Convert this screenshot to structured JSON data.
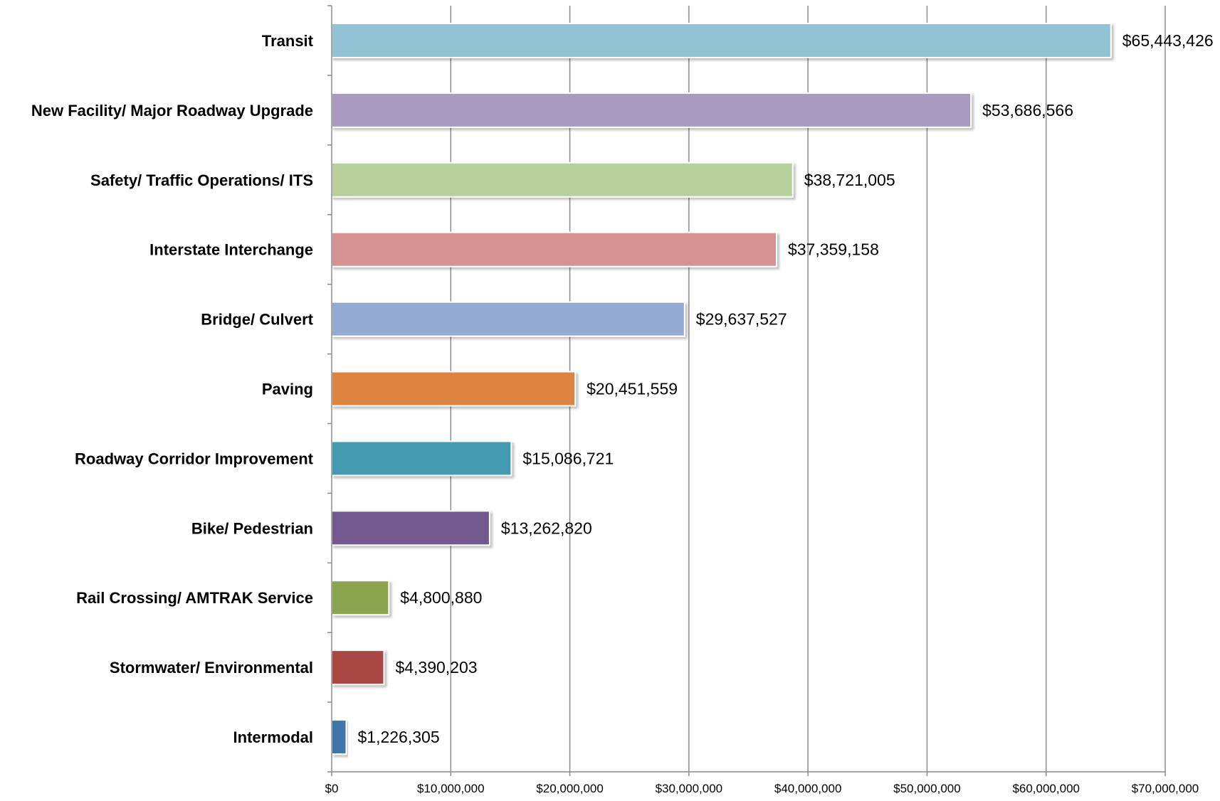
{
  "chart_data": {
    "type": "bar",
    "orientation": "horizontal",
    "title": "",
    "xlabel": "",
    "ylabel": "",
    "categories": [
      "Transit",
      "New Facility/ Major Roadway Upgrade",
      "Safety/ Traffic Operations/ ITS",
      "Interstate Interchange",
      "Bridge/ Culvert",
      "Paving",
      "Roadway Corridor Improvement",
      "Bike/ Pedestrian",
      "Rail Crossing/ AMTRAK Service",
      "Stormwater/ Environmental",
      "Intermodal"
    ],
    "values": [
      65443426,
      53686566,
      38721005,
      37359158,
      29637527,
      20451559,
      15086721,
      13262820,
      4800880,
      4390203,
      1226305
    ],
    "value_labels": [
      "$65,443,426",
      "$53,686,566",
      "$38,721,005",
      "$37,359,158",
      "$29,637,527",
      "$20,451,559",
      "$15,086,721",
      "$13,262,820",
      "$4,800,880",
      "$4,390,203",
      "$1,226,305"
    ],
    "bar_colors": [
      "#92c3d4",
      "#a99bc0",
      "#b7cf98",
      "#d39393",
      "#95aad2",
      "#dc843f",
      "#439bb0",
      "#72588f",
      "#8aa54e",
      "#a94744",
      "#4174ab"
    ],
    "xlim": [
      0,
      70000000
    ],
    "x_ticks": [
      0,
      10000000,
      20000000,
      30000000,
      40000000,
      50000000,
      60000000,
      70000000
    ],
    "x_tick_labels": [
      "$0",
      "$10,000,000",
      "$20,000,000",
      "$30,000,000",
      "$40,000,000",
      "$50,000,000",
      "$60,000,000",
      "$70,000,000"
    ],
    "grid": true,
    "legend": "none"
  }
}
